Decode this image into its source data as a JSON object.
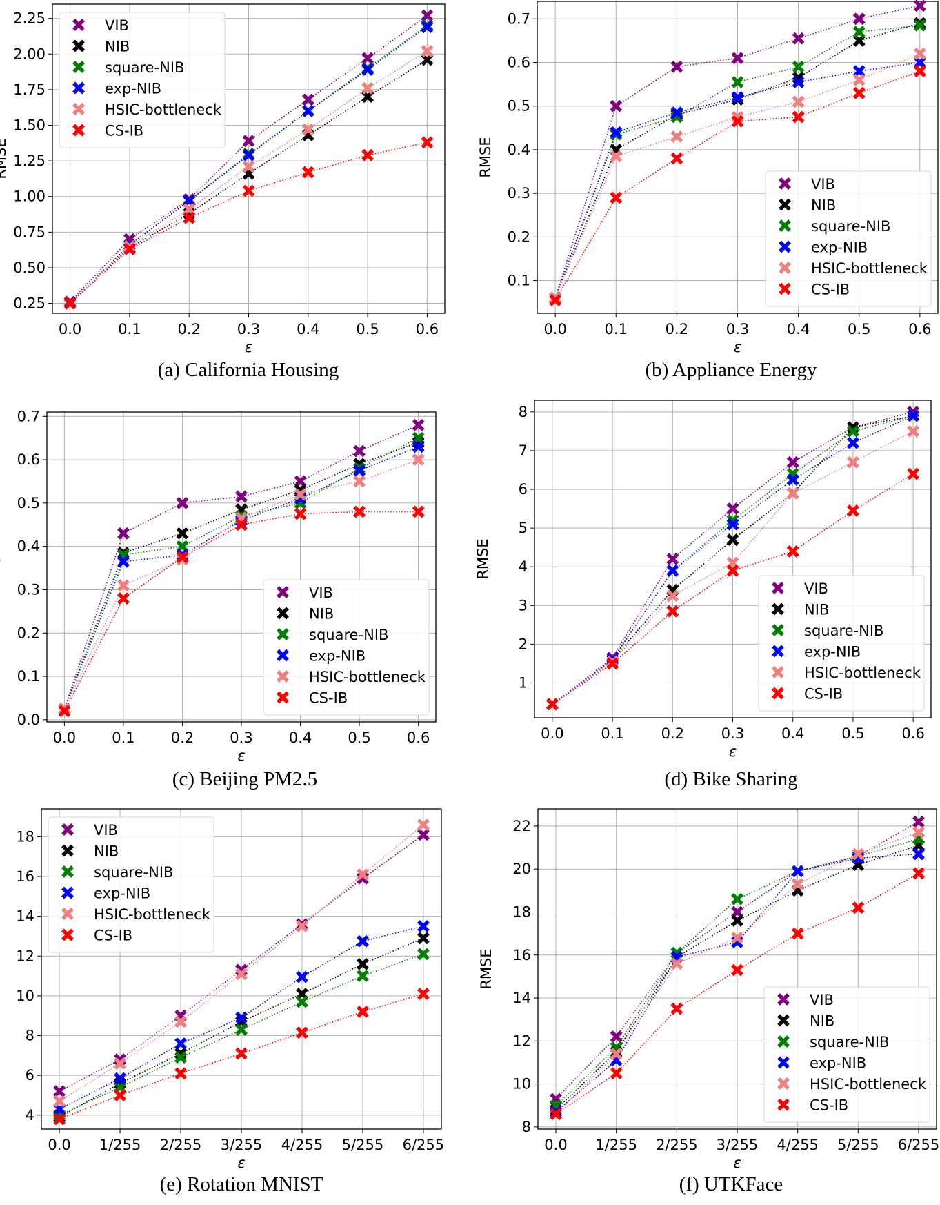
{
  "series_style": {
    "VIB": "#800080",
    "NIB": "#000000",
    "square-NIB": "#008000",
    "exp-NIB": "#0000ff",
    "HSIC-bottleneck": "#f08080",
    "CS-IB": "#ff0000"
  },
  "chart_data": [
    {
      "type": "line",
      "caption": "(a) California Housing",
      "xlabel": "ε",
      "ylabel": "RMSE",
      "categories": [
        "0.0",
        "0.1",
        "0.2",
        "0.3",
        "0.4",
        "0.5",
        "0.6"
      ],
      "ylim": [
        0.18,
        2.35
      ],
      "yticks": [
        "0.25",
        "0.50",
        "0.75",
        "1.00",
        "1.25",
        "1.50",
        "1.75",
        "2.00",
        "2.25"
      ],
      "grid": true,
      "legend": "top-left",
      "marker": "X",
      "linestyle": "dotted",
      "series": [
        {
          "name": "VIB",
          "values": [
            0.26,
            0.7,
            0.98,
            1.39,
            1.68,
            1.97,
            2.27
          ]
        },
        {
          "name": "NIB",
          "values": [
            0.25,
            0.64,
            0.88,
            1.16,
            1.43,
            1.7,
            1.96
          ]
        },
        {
          "name": "square-NIB",
          "values": [
            0.25,
            0.66,
            0.97,
            1.3,
            1.6,
            1.9,
            2.2
          ]
        },
        {
          "name": "exp-NIB",
          "values": [
            0.25,
            0.66,
            0.97,
            1.29,
            1.6,
            1.89,
            2.19
          ]
        },
        {
          "name": "HSIC-bottleneck",
          "values": [
            0.25,
            0.65,
            0.91,
            1.21,
            1.47,
            1.76,
            2.02
          ]
        },
        {
          "name": "CS-IB",
          "values": [
            0.25,
            0.63,
            0.85,
            1.04,
            1.17,
            1.29,
            1.38
          ]
        }
      ]
    },
    {
      "type": "line",
      "caption": "(b) Appliance Energy",
      "xlabel": "ε",
      "ylabel": "RMSE",
      "categories": [
        "0.0",
        "0.1",
        "0.2",
        "0.3",
        "0.4",
        "0.5",
        "0.6"
      ],
      "ylim": [
        0.025,
        0.74
      ],
      "yticks": [
        "0.1",
        "0.2",
        "0.3",
        "0.4",
        "0.5",
        "0.6",
        "0.7"
      ],
      "grid": true,
      "legend": "bottom-right",
      "marker": "X",
      "linestyle": "dotted",
      "series": [
        {
          "name": "VIB",
          "values": [
            0.06,
            0.5,
            0.59,
            0.61,
            0.655,
            0.7,
            0.73
          ]
        },
        {
          "name": "NIB",
          "values": [
            0.06,
            0.4,
            0.48,
            0.515,
            0.565,
            0.65,
            0.69
          ]
        },
        {
          "name": "square-NIB",
          "values": [
            0.06,
            0.435,
            0.475,
            0.555,
            0.59,
            0.67,
            0.685
          ]
        },
        {
          "name": "exp-NIB",
          "values": [
            0.06,
            0.44,
            0.485,
            0.52,
            0.555,
            0.58,
            0.6
          ]
        },
        {
          "name": "HSIC-bottleneck",
          "values": [
            0.06,
            0.385,
            0.43,
            0.475,
            0.51,
            0.56,
            0.62
          ]
        },
        {
          "name": "CS-IB",
          "values": [
            0.055,
            0.29,
            0.38,
            0.465,
            0.475,
            0.53,
            0.58
          ]
        }
      ]
    },
    {
      "type": "line",
      "caption": "(c) Beijing PM2.5",
      "xlabel": "ε",
      "ylabel": "RMSE",
      "categories": [
        "0.0",
        "0.1",
        "0.2",
        "0.3",
        "0.4",
        "0.5",
        "0.6"
      ],
      "ylim": [
        -0.005,
        0.71
      ],
      "yticks": [
        "0.0",
        "0.1",
        "0.2",
        "0.3",
        "0.4",
        "0.5",
        "0.6",
        "0.7"
      ],
      "grid": true,
      "legend": "bottom-right",
      "marker": "X",
      "linestyle": "dotted",
      "series": [
        {
          "name": "VIB",
          "values": [
            0.025,
            0.43,
            0.5,
            0.515,
            0.55,
            0.62,
            0.68
          ]
        },
        {
          "name": "NIB",
          "values": [
            0.025,
            0.385,
            0.43,
            0.485,
            0.53,
            0.59,
            0.64
          ]
        },
        {
          "name": "square-NIB",
          "values": [
            0.025,
            0.38,
            0.4,
            0.47,
            0.5,
            0.58,
            0.65
          ]
        },
        {
          "name": "exp-NIB",
          "values": [
            0.025,
            0.365,
            0.38,
            0.46,
            0.51,
            0.575,
            0.63
          ]
        },
        {
          "name": "HSIC-bottleneck",
          "values": [
            0.025,
            0.31,
            0.37,
            0.465,
            0.52,
            0.55,
            0.6
          ]
        },
        {
          "name": "CS-IB",
          "values": [
            0.02,
            0.28,
            0.375,
            0.45,
            0.475,
            0.48,
            0.48
          ]
        }
      ]
    },
    {
      "type": "line",
      "caption": "(d) Bike Sharing",
      "xlabel": "ε",
      "ylabel": "RMSE",
      "categories": [
        "0.0",
        "0.1",
        "0.2",
        "0.3",
        "0.4",
        "0.5",
        "0.6"
      ],
      "ylim": [
        0.1,
        8.3
      ],
      "yticks": [
        "1",
        "2",
        "3",
        "4",
        "5",
        "6",
        "7",
        "8"
      ],
      "grid": true,
      "legend": "bottom-right",
      "marker": "X",
      "linestyle": "dotted",
      "series": [
        {
          "name": "VIB",
          "values": [
            0.45,
            1.65,
            4.2,
            5.5,
            6.7,
            7.6,
            8.0
          ]
        },
        {
          "name": "NIB",
          "values": [
            0.45,
            1.6,
            3.4,
            4.7,
            5.9,
            7.6,
            7.9
          ]
        },
        {
          "name": "square-NIB",
          "values": [
            0.45,
            1.6,
            3.9,
            5.2,
            6.4,
            7.5,
            7.9
          ]
        },
        {
          "name": "exp-NIB",
          "values": [
            0.45,
            1.6,
            3.9,
            5.1,
            6.25,
            7.2,
            7.9
          ]
        },
        {
          "name": "HSIC-bottleneck",
          "values": [
            0.45,
            1.55,
            3.25,
            4.1,
            5.9,
            6.7,
            7.5
          ]
        },
        {
          "name": "CS-IB",
          "values": [
            0.45,
            1.5,
            2.85,
            3.9,
            4.4,
            5.45,
            6.4
          ]
        }
      ]
    },
    {
      "type": "line",
      "caption": "(e) Rotation MNIST",
      "xlabel": "ε",
      "ylabel": "RMSE",
      "categories": [
        "0.0",
        "1/255",
        "2/255",
        "3/255",
        "4/255",
        "5/255",
        "6/255"
      ],
      "ylim": [
        3.3,
        19.4
      ],
      "yticks": [
        "4",
        "6",
        "8",
        "10",
        "12",
        "14",
        "16",
        "18"
      ],
      "grid": true,
      "legend": "top-left",
      "marker": "X",
      "linestyle": "dotted",
      "series": [
        {
          "name": "VIB",
          "values": [
            5.2,
            6.8,
            9.0,
            11.3,
            13.6,
            15.9,
            18.1
          ]
        },
        {
          "name": "NIB",
          "values": [
            3.9,
            5.6,
            7.1,
            8.7,
            10.1,
            11.6,
            12.9
          ]
        },
        {
          "name": "square-NIB",
          "values": [
            4.0,
            5.4,
            6.9,
            8.3,
            9.7,
            11.0,
            12.1
          ]
        },
        {
          "name": "exp-NIB",
          "values": [
            4.3,
            5.85,
            7.6,
            8.9,
            10.95,
            12.75,
            13.5
          ]
        },
        {
          "name": "HSIC-bottleneck",
          "values": [
            4.7,
            6.6,
            8.7,
            11.1,
            13.5,
            16.1,
            18.6
          ]
        },
        {
          "name": "CS-IB",
          "values": [
            3.8,
            5.0,
            6.1,
            7.1,
            8.15,
            9.2,
            10.1
          ]
        }
      ]
    },
    {
      "type": "line",
      "caption": "(f) UTKFace",
      "xlabel": "ε",
      "ylabel": "RMSE",
      "categories": [
        "0.0",
        "1/255",
        "2/255",
        "3/255",
        "4/255",
        "5/255",
        "6/255"
      ],
      "ylim": [
        7.9,
        22.8
      ],
      "yticks": [
        "8",
        "10",
        "12",
        "14",
        "16",
        "18",
        "20",
        "22"
      ],
      "grid": true,
      "legend": "bottom-right",
      "marker": "X",
      "linestyle": "dotted",
      "series": [
        {
          "name": "VIB",
          "values": [
            9.3,
            12.2,
            16.1,
            18.0,
            19.9,
            20.6,
            22.2
          ]
        },
        {
          "name": "NIB",
          "values": [
            8.8,
            11.5,
            15.9,
            17.6,
            19.0,
            20.2,
            21.1
          ]
        },
        {
          "name": "square-NIB",
          "values": [
            9.0,
            11.7,
            16.1,
            18.6,
            19.9,
            20.6,
            21.4
          ]
        },
        {
          "name": "exp-NIB",
          "values": [
            8.7,
            11.1,
            15.9,
            16.6,
            19.9,
            20.5,
            20.7
          ]
        },
        {
          "name": "HSIC-bottleneck",
          "values": [
            8.6,
            11.4,
            15.6,
            16.8,
            19.3,
            20.7,
            21.7
          ]
        },
        {
          "name": "CS-IB",
          "values": [
            8.6,
            10.5,
            13.5,
            15.3,
            17.0,
            18.2,
            19.8
          ]
        }
      ]
    }
  ]
}
